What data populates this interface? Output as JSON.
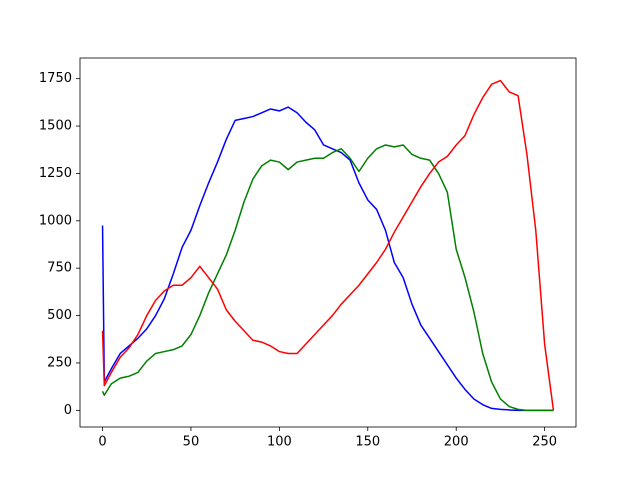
{
  "chart_data": {
    "type": "line",
    "x": [
      0,
      1,
      5,
      10,
      15,
      20,
      25,
      30,
      35,
      40,
      45,
      50,
      55,
      60,
      65,
      70,
      75,
      80,
      85,
      90,
      95,
      100,
      105,
      110,
      115,
      120,
      125,
      130,
      135,
      140,
      145,
      150,
      155,
      160,
      165,
      170,
      175,
      180,
      185,
      190,
      195,
      200,
      205,
      210,
      215,
      220,
      225,
      230,
      235,
      240,
      245,
      250,
      255
    ],
    "series": [
      {
        "color": "blue",
        "values": [
          975,
          150,
          220,
          300,
          340,
          380,
          430,
          500,
          590,
          720,
          860,
          950,
          1080,
          1200,
          1310,
          1430,
          1530,
          1540,
          1550,
          1570,
          1590,
          1580,
          1600,
          1570,
          1520,
          1480,
          1400,
          1380,
          1360,
          1320,
          1200,
          1110,
          1060,
          950,
          780,
          700,
          560,
          450,
          380,
          310,
          240,
          170,
          110,
          60,
          30,
          10,
          5,
          2,
          0,
          0,
          0,
          0,
          0
        ]
      },
      {
        "color": "green",
        "values": [
          100,
          80,
          140,
          170,
          180,
          200,
          260,
          300,
          310,
          320,
          340,
          400,
          500,
          620,
          720,
          820,
          950,
          1100,
          1220,
          1290,
          1320,
          1310,
          1270,
          1310,
          1320,
          1330,
          1330,
          1360,
          1380,
          1330,
          1260,
          1330,
          1380,
          1400,
          1390,
          1400,
          1350,
          1330,
          1320,
          1250,
          1150,
          850,
          700,
          520,
          300,
          150,
          60,
          20,
          5,
          0,
          0,
          0,
          0
        ]
      },
      {
        "color": "red",
        "values": [
          420,
          130,
          200,
          280,
          330,
          400,
          500,
          580,
          630,
          660,
          660,
          700,
          760,
          700,
          640,
          530,
          470,
          420,
          370,
          360,
          340,
          310,
          300,
          300,
          350,
          400,
          450,
          500,
          560,
          610,
          660,
          720,
          780,
          850,
          940,
          1020,
          1100,
          1180,
          1250,
          1310,
          1340,
          1400,
          1450,
          1560,
          1650,
          1720,
          1740,
          1680,
          1660,
          1350,
          950,
          350,
          0
        ]
      }
    ],
    "xlim": [
      -12.75,
      267.75
    ],
    "xticks": [
      0,
      50,
      100,
      150,
      200,
      250
    ],
    "ylim": [
      -88,
      1859
    ],
    "yticks": [
      0,
      250,
      500,
      750,
      1000,
      1250,
      1500,
      1750
    ]
  }
}
